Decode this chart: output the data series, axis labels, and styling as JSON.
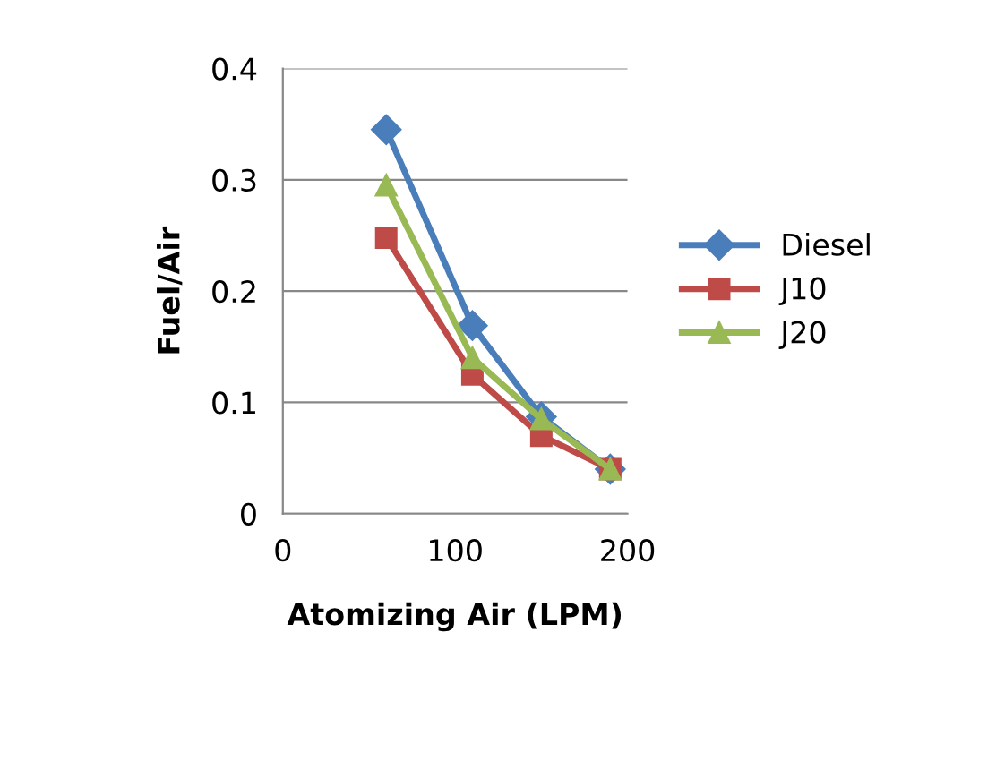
{
  "chart_data": {
    "type": "line",
    "xlabel": "Atomizing Air (LPM)",
    "ylabel": "Fuel/Air",
    "x": [
      60,
      110,
      150,
      190
    ],
    "series": [
      {
        "name": "Diesel",
        "color": "#4a7ebb",
        "marker": "diamond",
        "values": [
          0.345,
          0.169,
          0.087,
          0.04
        ]
      },
      {
        "name": "J10",
        "color": "#be4b48",
        "marker": "square",
        "values": [
          0.248,
          0.125,
          0.07,
          0.04
        ]
      },
      {
        "name": "J20",
        "color": "#98b954",
        "marker": "triangle",
        "values": [
          0.295,
          0.14,
          0.085,
          0.04
        ]
      }
    ],
    "xlim": [
      0,
      200
    ],
    "xticks": [
      0,
      100,
      200
    ],
    "ylim": [
      0,
      0.4
    ],
    "yticks": [
      0,
      0.1,
      0.2,
      0.3,
      0.4
    ],
    "grid": "y",
    "legend": "right",
    "line_style": "solid"
  }
}
